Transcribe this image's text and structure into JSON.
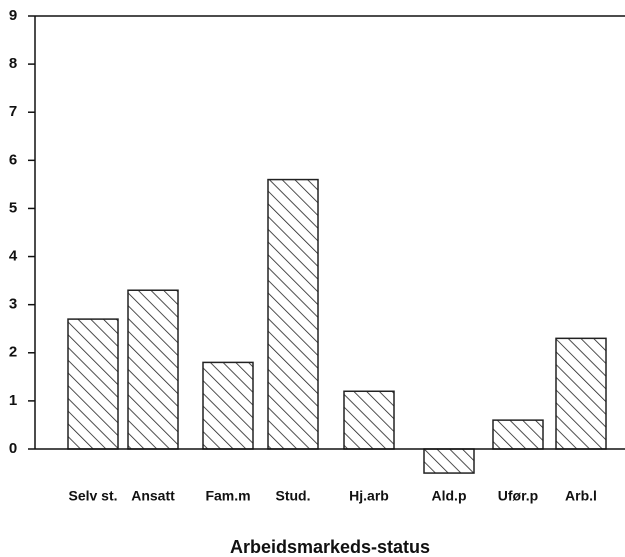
{
  "chart_data": {
    "type": "bar",
    "x_label": "Arbeidsmarkeds-status",
    "categories": [
      "Selv st.",
      "Ansatt",
      "Fam.m",
      "Stud.",
      "Hj.arb",
      "Ald.p",
      "Ufør.p",
      "Arb.l"
    ],
    "values": [
      2.7,
      3.3,
      1.8,
      5.6,
      1.2,
      -0.5,
      0.6,
      2.3
    ],
    "color": "#222222",
    "ylim": [
      0,
      9
    ],
    "yticks": [
      0,
      1,
      2,
      3,
      4,
      5,
      6,
      7,
      8,
      9
    ],
    "grid": false
  }
}
